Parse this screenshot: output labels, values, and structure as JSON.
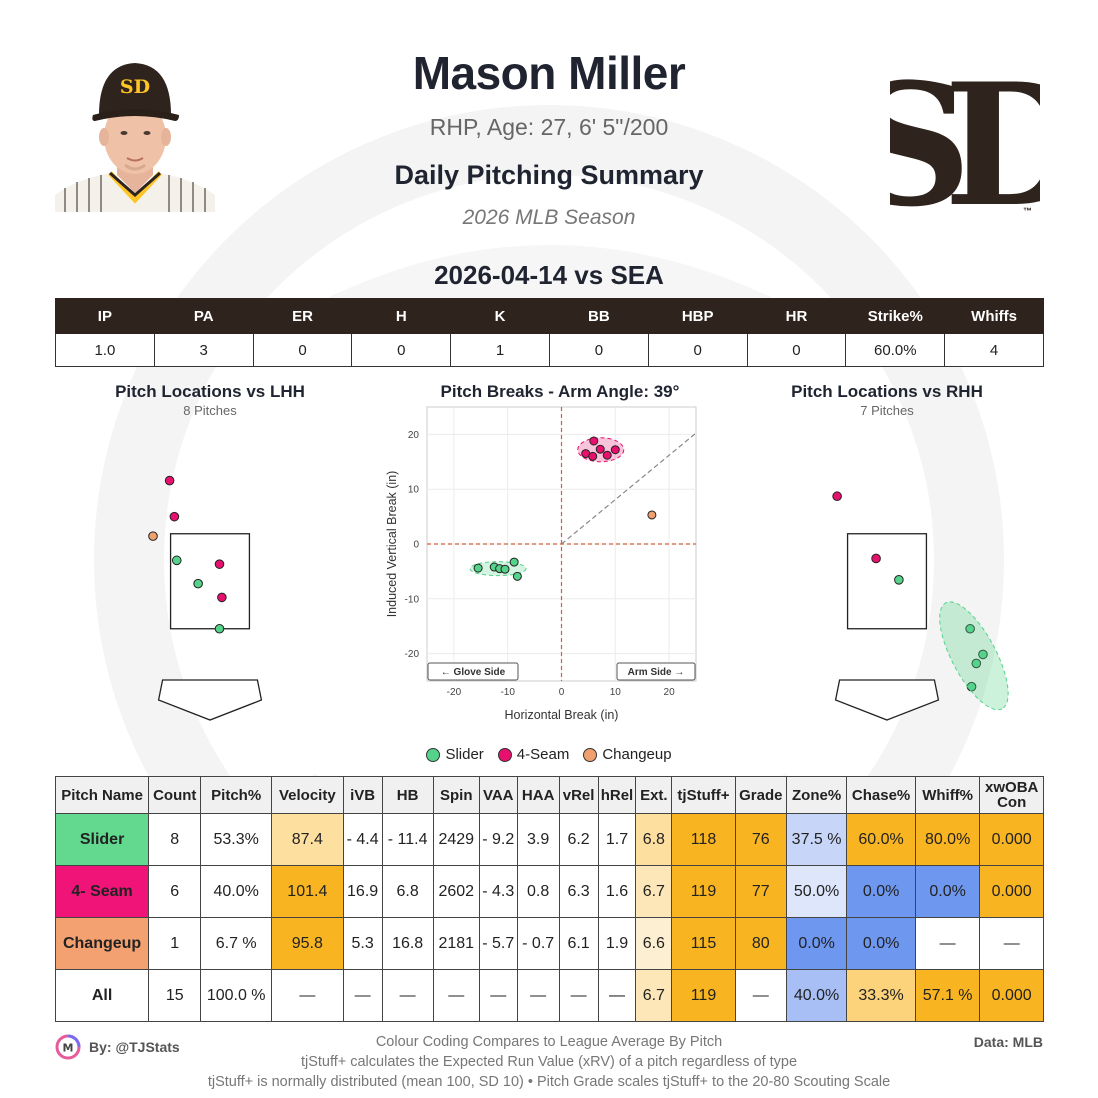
{
  "header": {
    "player_name": "Mason Miller",
    "bio": "RHP, Age: 27, 6' 5\"/200",
    "report_title": "Daily Pitching Summary",
    "season": "2026 MLB Season",
    "game_line": "2026-04-14 vs SEA"
  },
  "team": {
    "logo_text": "SD",
    "primary_color": "#2f241d",
    "accent_color": "#ffc425"
  },
  "boxscore": {
    "headers": [
      "IP",
      "PA",
      "ER",
      "H",
      "K",
      "BB",
      "HBP",
      "HR",
      "Strike%",
      "Whiffs"
    ],
    "values": [
      "1.0",
      "3",
      "0",
      "0",
      "1",
      "0",
      "0",
      "0",
      "60.0%",
      "4"
    ]
  },
  "colors": {
    "Slider": "#55d38a",
    "4-Seam": "#e8106e",
    "Changeup": "#f0a06e"
  },
  "chart_data": [
    {
      "type": "scatter",
      "title": "Pitch Locations vs LHH",
      "subtitle": "8 Pitches",
      "axes": "none",
      "points": [
        {
          "pitch": "4-Seam",
          "x": -0.85,
          "y": 4.62
        },
        {
          "pitch": "4-Seam",
          "x": -0.75,
          "y": 3.86
        },
        {
          "pitch": "Changeup",
          "x": -1.2,
          "y": 3.45
        },
        {
          "pitch": "Slider",
          "x": -0.7,
          "y": 2.94
        },
        {
          "pitch": "4-Seam",
          "x": 0.2,
          "y": 2.86
        },
        {
          "pitch": "Slider",
          "x": -0.25,
          "y": 2.45
        },
        {
          "pitch": "4-Seam",
          "x": 0.25,
          "y": 2.16
        },
        {
          "pitch": "Slider",
          "x": 0.2,
          "y": 1.5
        }
      ]
    },
    {
      "type": "scatter",
      "title": "Pitch Breaks - Arm Angle: 39°",
      "xlabel": "Horizontal Break (in)",
      "ylabel": "Induced Vertical Break (in)",
      "xlim": [
        -25,
        25
      ],
      "ylim": [
        -25,
        25
      ],
      "xticks": [
        -20,
        -10,
        0,
        10,
        20
      ],
      "yticks": [
        -20,
        -10,
        0,
        10,
        20
      ],
      "arm_angle_deg": 39,
      "glove_label": "← Glove Side",
      "arm_label": "Arm Side →",
      "points": [
        {
          "pitch": "4-Seam",
          "x": 6,
          "y": 18.8
        },
        {
          "pitch": "4-Seam",
          "x": 4.5,
          "y": 16.5
        },
        {
          "pitch": "4-Seam",
          "x": 5.8,
          "y": 16
        },
        {
          "pitch": "4-Seam",
          "x": 7.2,
          "y": 17.3
        },
        {
          "pitch": "4-Seam",
          "x": 8.5,
          "y": 16.2
        },
        {
          "pitch": "4-Seam",
          "x": 10,
          "y": 17.2
        },
        {
          "pitch": "Changeup",
          "x": 16.8,
          "y": 5.3
        },
        {
          "pitch": "Slider",
          "x": -15.5,
          "y": -4.4
        },
        {
          "pitch": "Slider",
          "x": -12.5,
          "y": -4.2
        },
        {
          "pitch": "Slider",
          "x": -11.5,
          "y": -4.5
        },
        {
          "pitch": "Slider",
          "x": -10.5,
          "y": -4.6
        },
        {
          "pitch": "Slider",
          "x": -8.8,
          "y": -3.3
        },
        {
          "pitch": "Slider",
          "x": -8.2,
          "y": -5.9
        }
      ]
    },
    {
      "type": "scatter",
      "title": "Pitch Locations vs RHH",
      "subtitle": "7 Pitches",
      "axes": "none",
      "points": [
        {
          "pitch": "4-Seam",
          "x": -1.05,
          "y": 4.29
        },
        {
          "pitch": "4-Seam",
          "x": -0.23,
          "y": 2.98
        },
        {
          "pitch": "Slider",
          "x": 0.25,
          "y": 2.53
        },
        {
          "pitch": "Slider",
          "x": 1.75,
          "y": 1.5
        },
        {
          "pitch": "Slider",
          "x": 2.02,
          "y": 0.96
        },
        {
          "pitch": "Slider",
          "x": 1.88,
          "y": 0.77
        },
        {
          "pitch": "Slider",
          "x": 1.78,
          "y": 0.28
        }
      ]
    }
  ],
  "legend": [
    "Slider",
    "4-Seam",
    "Changeup"
  ],
  "pitch_table": {
    "headers": [
      "Pitch Name",
      "Count",
      "Pitch%",
      "Velocity",
      "iVB",
      "HB",
      "Spin",
      "VAA",
      "HAA",
      "vRel",
      "hRel",
      "Ext.",
      "tjStuff+",
      "Grade",
      "Zone%",
      "Chase%",
      "Whiff%",
      "xwOBA Con"
    ],
    "rows": [
      {
        "cells": [
          "Slider",
          "8",
          "53.3%",
          "87.4",
          "- 4.4",
          "- 11.4",
          "2429",
          "- 9.2",
          "3.9",
          "6.2",
          "1.7",
          "6.8",
          "118",
          "76",
          "37.5 %",
          "60.0%",
          "80.0%",
          "0.000"
        ],
        "bg": [
          "#62d98f",
          "",
          "",
          "#fde0a0",
          "",
          "",
          "",
          "",
          "",
          "",
          "",
          "#fde0a0",
          "#f9b421",
          "#f9b421",
          "#c7d6f8",
          "#f9b421",
          "#f9b421",
          "#f9b421"
        ]
      },
      {
        "cells": [
          "4- Seam",
          "6",
          "40.0%",
          "101.4",
          "16.9",
          "6.8",
          "2602",
          "- 4.3",
          "0.8",
          "6.3",
          "1.6",
          "6.7",
          "119",
          "77",
          "50.0%",
          "0.0%",
          "0.0%",
          "0.000"
        ],
        "bg": [
          "#f01478",
          "",
          "",
          "#f9b421",
          "",
          "",
          "",
          "",
          "",
          "",
          "",
          "#fde7b8",
          "#f9b421",
          "#f9b421",
          "#dde6fa",
          "#6e97ef",
          "#6e97ef",
          "#f9b421"
        ]
      },
      {
        "cells": [
          "Changeup",
          "1",
          "6.7 %",
          "95.8",
          "5.3",
          "16.8",
          "2181",
          "- 5.7",
          "- 0.7",
          "6.1",
          "1.9",
          "6.6",
          "115",
          "80",
          "0.0%",
          "0.0%",
          "—",
          "—"
        ],
        "bg": [
          "#f4a171",
          "",
          "",
          "#f9b421",
          "",
          "",
          "",
          "",
          "",
          "",
          "",
          "#fdf0d2",
          "#f9b421",
          "#f9b421",
          "#6e97ef",
          "#6e97ef",
          "",
          ""
        ]
      },
      {
        "cells": [
          "All",
          "15",
          "100.0 %",
          "—",
          "—",
          "—",
          "—",
          "—",
          "—",
          "—",
          "—",
          "6.7",
          "119",
          "—",
          "40.0%",
          "33.3%",
          "57.1  %",
          "0.000"
        ],
        "bg": [
          "",
          "",
          "",
          "",
          "",
          "",
          "",
          "",
          "",
          "",
          "",
          "#fde7b8",
          "#f9b421",
          "",
          "#a8bff5",
          "#fcd27a",
          "#f9b421",
          "#f9b421"
        ]
      }
    ]
  },
  "footer": {
    "byline": "By: @TJStats",
    "data_source": "Data: MLB",
    "notes": [
      "Colour Coding Compares to League Average By Pitch",
      "tjStuff+ calculates the Expected Run Value (xRV) of a pitch regardless of type",
      "tjStuff+ is normally distributed (mean 100, SD 10) • Pitch Grade scales tjStuff+ to the 20-80 Scouting Scale"
    ]
  }
}
